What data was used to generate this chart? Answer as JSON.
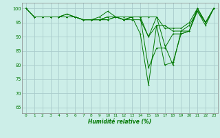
{
  "title": "",
  "xlabel": "Humidité relative (%)",
  "ylabel": "",
  "background_color": "#cceee8",
  "grid_color": "#aacccc",
  "line_color": "#007700",
  "xlim": [
    -0.5,
    23.5
  ],
  "ylim": [
    63,
    102
  ],
  "yticks": [
    65,
    70,
    75,
    80,
    85,
    90,
    95,
    100
  ],
  "xticks": [
    0,
    1,
    2,
    3,
    4,
    5,
    6,
    7,
    8,
    9,
    10,
    11,
    12,
    13,
    14,
    15,
    16,
    17,
    18,
    19,
    20,
    21,
    22,
    23
  ],
  "series": [
    [
      100,
      97,
      97,
      97,
      97,
      97,
      97,
      96,
      96,
      96,
      97,
      97,
      96,
      97,
      97,
      97,
      97,
      87,
      80,
      92,
      94,
      99,
      94,
      100
    ],
    [
      100,
      97,
      97,
      97,
      97,
      98,
      97,
      96,
      96,
      96,
      97,
      97,
      97,
      97,
      97,
      90,
      97,
      93,
      93,
      93,
      95,
      100,
      95,
      100
    ],
    [
      100,
      97,
      97,
      97,
      97,
      98,
      97,
      96,
      96,
      97,
      99,
      97,
      96,
      96,
      96,
      90,
      94,
      94,
      92,
      92,
      92,
      99,
      95,
      100
    ],
    [
      100,
      97,
      97,
      97,
      97,
      97,
      97,
      96,
      96,
      96,
      96,
      97,
      96,
      97,
      97,
      79,
      86,
      86,
      91,
      91,
      92,
      100,
      95,
      100
    ],
    [
      100,
      97,
      97,
      97,
      97,
      97,
      97,
      96,
      96,
      96,
      96,
      97,
      96,
      97,
      91,
      73,
      94,
      80,
      81,
      91,
      92,
      100,
      95,
      100
    ]
  ]
}
